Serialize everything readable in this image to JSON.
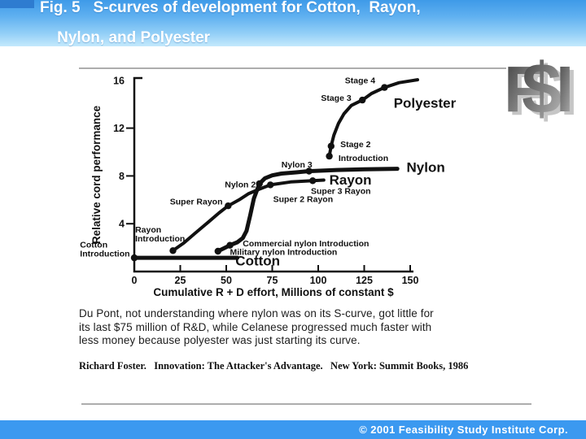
{
  "header": {
    "title_line1": "Fig. 5   S-curves of development for Cotton,  Rayon,",
    "title_line2": "Nylon, and Polyester",
    "gradient_top": "#3E9AE8",
    "gradient_bottom": "#C4E9FC",
    "accent_color": "#2E7CD0"
  },
  "logo": {
    "letters": [
      "F",
      "$",
      "I"
    ]
  },
  "paragraph": {
    "lines": [
      "Du Pont, not understanding where nylon was on its S-curve, got little for",
      "its last $75 million of R&D, while Celanese progressed much faster with",
      "less money because polyester was just starting its curve."
    ]
  },
  "citation": {
    "text": "Richard Foster.   Innovation: The Attacker's Advantage.   New York: Summit Books, 1986"
  },
  "footer": {
    "text": "© 2001 Feasibility Study Institute Corp.",
    "bar_color": "#3B99F0"
  },
  "chart_data": {
    "type": "line",
    "title": "S-curves of development for Cotton, Rayon, Nylon, and Polyester",
    "xlabel": "Cumulative R + D effort, Millions of constant $",
    "ylabel": "Relative cord performance",
    "xlim": [
      0,
      155
    ],
    "ylim": [
      0,
      16.5
    ],
    "xticks": [
      0,
      25,
      50,
      75,
      100,
      125,
      150
    ],
    "yticks": [
      4,
      8,
      12,
      16
    ],
    "grid": false,
    "line_color": "#111111",
    "series": [
      {
        "name": "Cotton",
        "stroke_width": 5,
        "points": [
          [
            0,
            1.15
          ],
          [
            56,
            1.15
          ]
        ],
        "dots": [
          [
            0,
            1.15
          ]
        ]
      },
      {
        "name": "Rayon",
        "stroke_width": 4,
        "points": [
          [
            21,
            1.75
          ],
          [
            27,
            2.4
          ],
          [
            33,
            3.2
          ],
          [
            40,
            4.1
          ],
          [
            46,
            4.9
          ],
          [
            51,
            5.5
          ],
          [
            57,
            6.0
          ],
          [
            62,
            6.5
          ],
          [
            68,
            6.9
          ],
          [
            74,
            7.25
          ],
          [
            85,
            7.5
          ],
          [
            97,
            7.6
          ],
          [
            103,
            7.65
          ]
        ],
        "dots": [
          [
            21,
            1.75
          ],
          [
            51,
            5.5
          ],
          [
            74,
            7.25
          ],
          [
            97,
            7.6
          ]
        ]
      },
      {
        "name": "Nylon",
        "stroke_width": 5,
        "points": [
          [
            45.5,
            1.7
          ],
          [
            52,
            2.2
          ],
          [
            56,
            2.45
          ],
          [
            59,
            2.8
          ],
          [
            61,
            3.4
          ],
          [
            63,
            4.7
          ],
          [
            65,
            6.1
          ],
          [
            68,
            7.35
          ],
          [
            71,
            7.8
          ],
          [
            75,
            8.05
          ],
          [
            80,
            8.2
          ],
          [
            88,
            8.3
          ],
          [
            95,
            8.4
          ],
          [
            110,
            8.5
          ],
          [
            125,
            8.55
          ],
          [
            143,
            8.6
          ]
        ],
        "dots": [
          [
            45.5,
            1.7
          ],
          [
            52,
            2.2
          ],
          [
            68,
            7.35
          ],
          [
            95,
            8.4
          ]
        ]
      },
      {
        "name": "Polyester",
        "stroke_width": 4,
        "points": [
          [
            106,
            9.65
          ],
          [
            107,
            10.5
          ],
          [
            108.5,
            11.4
          ],
          [
            111,
            12.4
          ],
          [
            114,
            13.2
          ],
          [
            118,
            13.9
          ],
          [
            124,
            14.35
          ],
          [
            129,
            14.9
          ],
          [
            136,
            15.4
          ],
          [
            144,
            15.8
          ],
          [
            154,
            16.05
          ]
        ],
        "dots": [
          [
            106,
            9.65
          ],
          [
            107,
            10.5
          ],
          [
            124,
            14.35
          ],
          [
            136,
            15.4
          ]
        ]
      }
    ],
    "annotations": [
      {
        "text": "Stage 4",
        "x": 131,
        "y": 16.0,
        "anchor": "end",
        "size": "sm"
      },
      {
        "text": "Stage 3",
        "x": 118,
        "y": 14.55,
        "anchor": "end",
        "size": "sm"
      },
      {
        "text": "Stage 2",
        "x": 112,
        "y": 10.65,
        "anchor": "start",
        "size": "sm"
      },
      {
        "text": "Introduction",
        "x": 111,
        "y": 9.5,
        "anchor": "start",
        "size": "sm"
      },
      {
        "text": "Polyester",
        "x": 141,
        "y": 14.1,
        "anchor": "start",
        "size": "lg"
      },
      {
        "text": "Nylon",
        "x": 148,
        "y": 8.75,
        "anchor": "start",
        "size": "lg"
      },
      {
        "text": "Rayon",
        "x": 106,
        "y": 7.7,
        "anchor": "start",
        "size": "lg"
      },
      {
        "text": "Cotton",
        "x": 55,
        "y": 0.9,
        "anchor": "start",
        "size": "lg"
      },
      {
        "text": "Nylon 3",
        "x": 80,
        "y": 8.95,
        "anchor": "start",
        "size": "sm"
      },
      {
        "text": "Nylon 2",
        "x": 66,
        "y": 7.3,
        "anchor": "end",
        "size": "sm"
      },
      {
        "text": "Super 3 Rayon",
        "x": 96,
        "y": 6.75,
        "anchor": "start",
        "size": "sm"
      },
      {
        "text": "Super 2 Rayon",
        "x": 75.5,
        "y": 6.05,
        "anchor": "start",
        "size": "sm"
      },
      {
        "text": "Super Rayon",
        "x": 48,
        "y": 5.85,
        "anchor": "end",
        "size": "sm"
      },
      {
        "lines": [
          "Rayon",
          "Introduction"
        ],
        "x": 0.5,
        "y": 3.5,
        "anchor": "start",
        "size": "sm"
      },
      {
        "lines": [
          "Cotton",
          "Introduction"
        ],
        "x": -29.5,
        "y": 2.25,
        "anchor": "start",
        "size": "sm"
      },
      {
        "text": "Commercial nylon Introduction",
        "x": 59,
        "y": 2.35,
        "anchor": "start",
        "size": "sm"
      },
      {
        "text": "Military nylon Introduction",
        "x": 52,
        "y": 1.65,
        "anchor": "start",
        "size": "sm"
      }
    ]
  }
}
